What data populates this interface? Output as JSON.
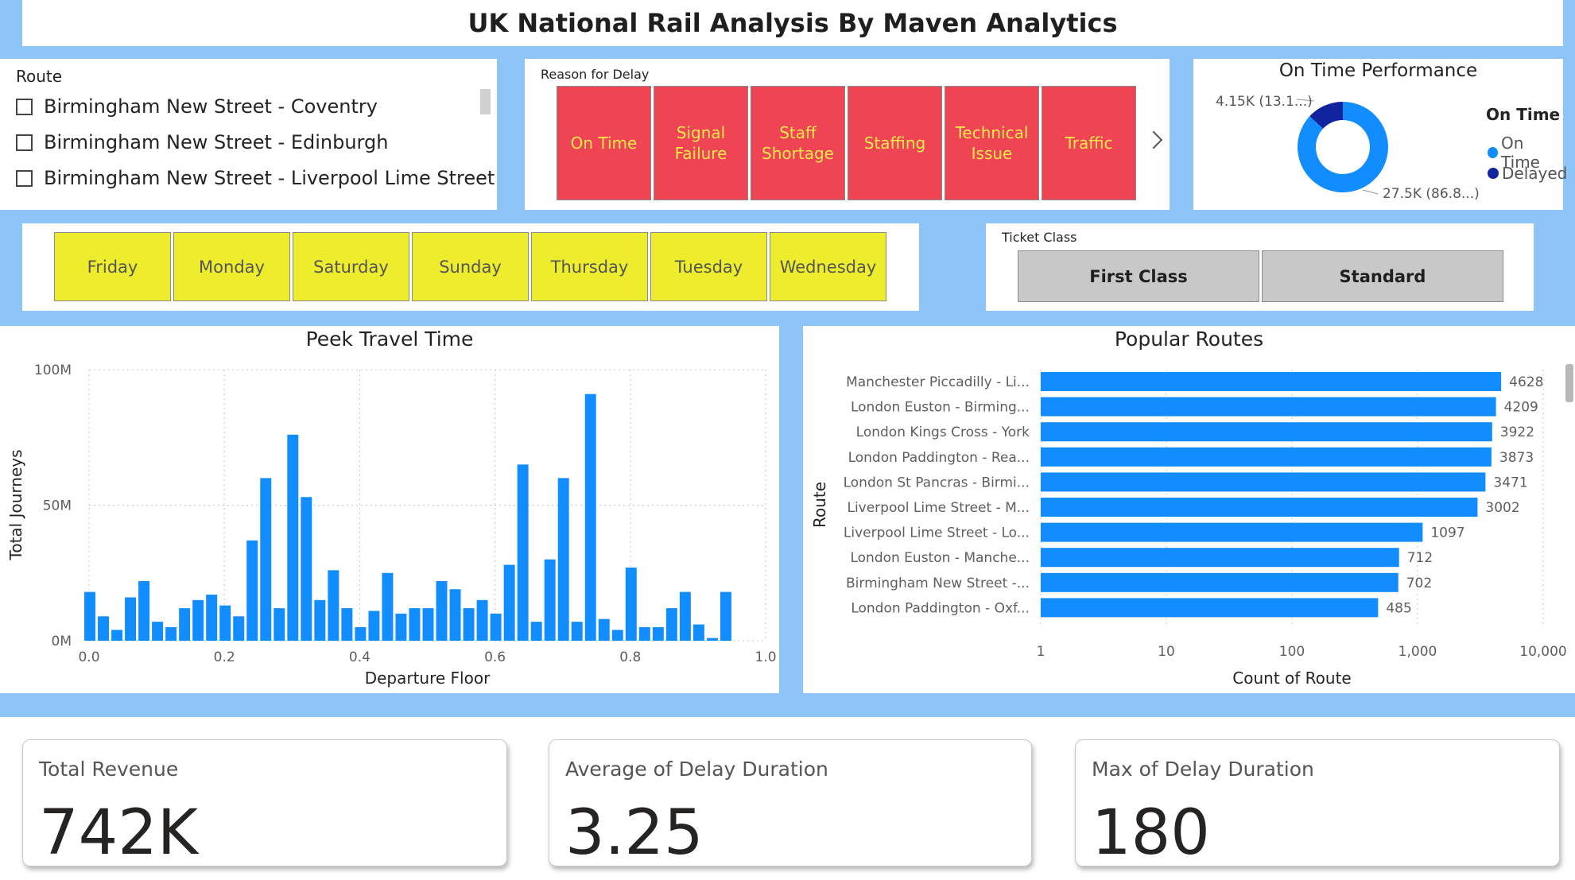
{
  "header": {
    "title": "UK National Rail Analysis By Maven Analytics"
  },
  "route_slicer": {
    "title": "Route",
    "items": [
      "Birmingham New Street - Coventry",
      "Birmingham New Street - Edinburgh",
      "Birmingham New Street - Liverpool Lime Street"
    ]
  },
  "delay_slicer": {
    "title": "Reason for Delay",
    "items": [
      "On Time",
      "Signal Failure",
      "Staff Shortage",
      "Staffing",
      "Technical Issue",
      "Traffic"
    ],
    "tile_color": "#ef4454",
    "text_color": "#f7e94b"
  },
  "on_time_performance": {
    "title": "On Time Performance",
    "legend_title": "On Time",
    "legend": [
      "On Time",
      "Delayed"
    ],
    "colors": {
      "on_time": "#118dff",
      "delayed": "#12239e"
    },
    "labels": {
      "delayed": "4.15K (13.1...)",
      "on_time": "27.5K (86.8...)"
    },
    "chart_data": {
      "type": "pie",
      "categories": [
        "On Time",
        "Delayed"
      ],
      "values": [
        27500,
        4150
      ],
      "percent": [
        86.8,
        13.1
      ]
    }
  },
  "day_slicer": {
    "items": [
      "Friday",
      "Monday",
      "Saturday",
      "Sunday",
      "Thursday",
      "Tuesday",
      "Wednesday"
    ],
    "tile_color": "#eded2d"
  },
  "ticket_class": {
    "title": "Ticket Class",
    "items": [
      "First Class",
      "Standard"
    ]
  },
  "chart_data": [
    {
      "type": "bar",
      "title": "Peek Travel Time",
      "xlabel": "Departure Floor",
      "ylabel": "Total Journeys",
      "xlim": [
        0,
        1
      ],
      "ylim": [
        0,
        100
      ],
      "x_ticks": [
        "0.0",
        "0.2",
        "0.4",
        "0.6",
        "0.8",
        "1.0"
      ],
      "y_ticks": [
        "0M",
        "50M",
        "100M"
      ],
      "bar_color": "#118dff",
      "bin_width": 0.02,
      "x": [
        0.0,
        0.02,
        0.04,
        0.06,
        0.08,
        0.1,
        0.12,
        0.14,
        0.16,
        0.18,
        0.2,
        0.22,
        0.24,
        0.26,
        0.28,
        0.3,
        0.32,
        0.34,
        0.36,
        0.38,
        0.4,
        0.42,
        0.44,
        0.46,
        0.48,
        0.5,
        0.52,
        0.54,
        0.56,
        0.58,
        0.6,
        0.62,
        0.64,
        0.66,
        0.68,
        0.7,
        0.72,
        0.74,
        0.76,
        0.78,
        0.8,
        0.82,
        0.84,
        0.86,
        0.88,
        0.9,
        0.92,
        0.94,
        0.96,
        0.98
      ],
      "values": [
        18,
        9,
        4,
        16,
        22,
        7,
        5,
        12,
        15,
        17,
        13,
        9,
        37,
        60,
        12,
        76,
        53,
        15,
        26,
        12,
        5,
        11,
        25,
        10,
        12,
        12,
        22,
        19,
        12,
        15,
        10,
        28,
        65,
        7,
        30,
        60,
        7,
        91,
        8,
        4,
        27,
        5,
        5,
        12,
        18,
        6,
        1,
        18,
        0,
        0
      ],
      "unit": "M"
    },
    {
      "type": "bar",
      "orientation": "horizontal",
      "title": "Popular Routes",
      "xlabel": "Count of Route",
      "ylabel": "Route",
      "x_scale": "log",
      "xlim": [
        1,
        10000
      ],
      "x_ticks": [
        "1",
        "10",
        "100",
        "1,000",
        "10,000"
      ],
      "bar_color": "#118dff",
      "categories": [
        "Manchester Piccadilly - Li...",
        "London Euston - Birming...",
        "London Kings Cross - York",
        "London Paddington - Rea...",
        "London St Pancras - Birmi...",
        "Liverpool Lime Street - M...",
        "Liverpool Lime Street - Lo...",
        "London Euston - Manche...",
        "Birmingham New Street -...",
        "London Paddington - Oxf..."
      ],
      "values": [
        4628,
        4209,
        3922,
        3873,
        3471,
        3002,
        1097,
        712,
        702,
        485
      ]
    }
  ],
  "cards": [
    {
      "label": "Total Revenue",
      "value": "742K"
    },
    {
      "label": "Average of Delay Duration",
      "value": "3.25"
    },
    {
      "label": "Max of Delay Duration",
      "value": "180"
    }
  ]
}
